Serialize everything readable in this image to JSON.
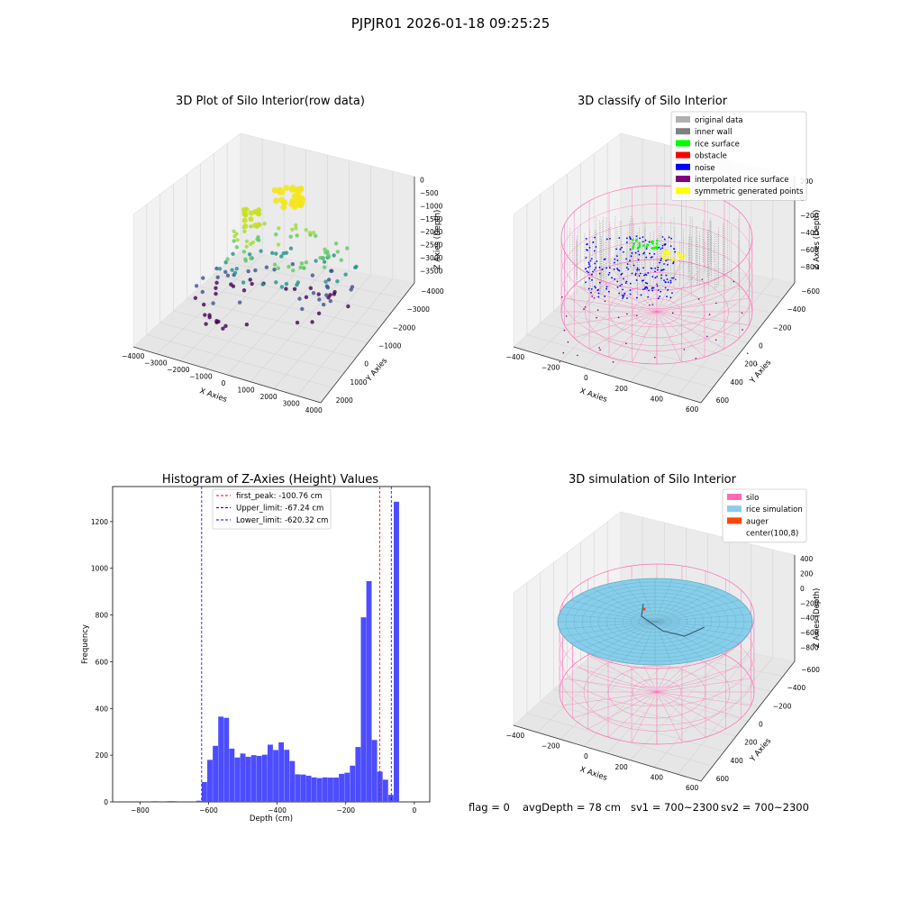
{
  "figure": {
    "suptitle": "PJPJR01 2026-01-18 09:25:25",
    "status": {
      "flag": "flag = 0",
      "avg_depth": "avgDepth = 78 cm",
      "sv1": "sv1 = 700~2300",
      "sv2": "sv2 = 700~2300"
    }
  },
  "chart_data": [
    {
      "type": "scatter",
      "title": "3D Plot of Silo Interior(row data)",
      "xlabel": "X Axies",
      "ylabel": "Y Axies",
      "zlabel": "Z Axies (Depth)",
      "xticks": [
        "−4000",
        "−3000",
        "−2000",
        "−1000",
        "0",
        "1000",
        "2000",
        "3000",
        "4000"
      ],
      "yticks": [
        "−4000",
        "−3000",
        "−2000",
        "−1000",
        "0",
        "1000",
        "2000"
      ],
      "zticks": [
        "0",
        "−500",
        "−1000",
        "−1500",
        "−2000",
        "−2500",
        "−3000",
        "−3500"
      ],
      "xlim": [
        -4000,
        4500
      ],
      "ylim": [
        -4500,
        2500
      ],
      "zlim": [
        -3800,
        200
      ],
      "colormap": "viridis",
      "description": "Scattered point cloud at several depth rings, colored by depth (purple deep, yellow shallow)"
    },
    {
      "type": "scatter",
      "title": "3D classify of Silo Interior",
      "xlabel": "X Axies",
      "ylabel": "Y Axies",
      "zlabel": "Z Axies (Depth)",
      "xticks": [
        "−400",
        "−200",
        "0",
        "200",
        "400",
        "600"
      ],
      "yticks": [
        "−600",
        "−400",
        "−200",
        "0",
        "200",
        "400",
        "600"
      ],
      "zticks": [
        "200",
        "0",
        "−200",
        "−400",
        "−600",
        "−800"
      ],
      "legend_loc": "upper right",
      "legend": [
        {
          "label": "original data",
          "color": "#b0b0b0"
        },
        {
          "label": "inner wall",
          "color": "#808080"
        },
        {
          "label": "rice surface",
          "color": "#00ff00"
        },
        {
          "label": "obstacle",
          "color": "#ff0000"
        },
        {
          "label": "noise",
          "color": "#0000ff"
        },
        {
          "label": "interpolated rice surface",
          "color": "#800080"
        },
        {
          "label": "symmetric generated points",
          "color": "#ffff00"
        }
      ]
    },
    {
      "type": "bar",
      "title": "Histogram of Z-Axies (Height) Values",
      "xlabel": "Depth (cm)",
      "ylabel": "Frequency",
      "xlim": [
        -880,
        45
      ],
      "ylim": [
        0,
        1350
      ],
      "xticks": [
        -800,
        -600,
        -400,
        -200,
        0
      ],
      "yticks": [
        0,
        200,
        400,
        600,
        800,
        1000,
        1200
      ],
      "bin_width": 16,
      "bin_start": [
        -764,
        -724,
        -716,
        -708,
        -636,
        -620,
        -604,
        -588,
        -572,
        -556,
        -540,
        -524,
        -508,
        -492,
        -476,
        -460,
        -444,
        -428,
        -412,
        -396,
        -380,
        -364,
        -348,
        -332,
        -316,
        -300,
        -284,
        -268,
        -252,
        -236,
        -220,
        -204,
        -188,
        -172,
        -156,
        -140,
        -124,
        -108,
        -92,
        -76,
        -60,
        -44,
        -28,
        -12
      ],
      "counts": [
        3,
        3,
        3,
        3,
        5,
        85,
        180,
        240,
        365,
        360,
        228,
        190,
        207,
        193,
        200,
        197,
        202,
        245,
        222,
        255,
        223,
        175,
        118,
        117,
        112,
        105,
        102,
        105,
        104,
        104,
        120,
        125,
        155,
        235,
        790,
        945,
        265,
        130,
        95,
        30,
        1285,
        0,
        0,
        0
      ],
      "vlines": [
        {
          "x": -100.76,
          "color": "#ff0000",
          "label": "first_peak: -100.76 cm"
        },
        {
          "x": -67.24,
          "color": "#0000ff",
          "label": "Upper_limit: -67.24 cm"
        },
        {
          "x": -620.32,
          "color": "#0000ff",
          "label": "Lower_limit: -620.32 cm"
        }
      ],
      "bar_color": "#4d4dff",
      "legend_loc": "upper center"
    },
    {
      "type": "surface",
      "title": "3D simulation of Silo Interior",
      "xlabel": "X Axies",
      "ylabel": "Y Axies",
      "zlabel": "Z Axies (Depth)",
      "xticks": [
        "−400",
        "−200",
        "0",
        "200",
        "400",
        "600"
      ],
      "yticks": [
        "−600",
        "−400",
        "−200",
        "0",
        "200",
        "400",
        "600"
      ],
      "zticks": [
        "400",
        "200",
        "0",
        "−200",
        "−400",
        "−600",
        "−800"
      ],
      "legend_loc": "upper right",
      "legend": [
        {
          "label": "silo",
          "color": "#ff69b4"
        },
        {
          "label": "rice simulation",
          "color": "#87ceeb"
        },
        {
          "label": "auger",
          "color": "#ff4500"
        },
        {
          "label": "center(100,8)",
          "color": "none"
        }
      ]
    }
  ]
}
